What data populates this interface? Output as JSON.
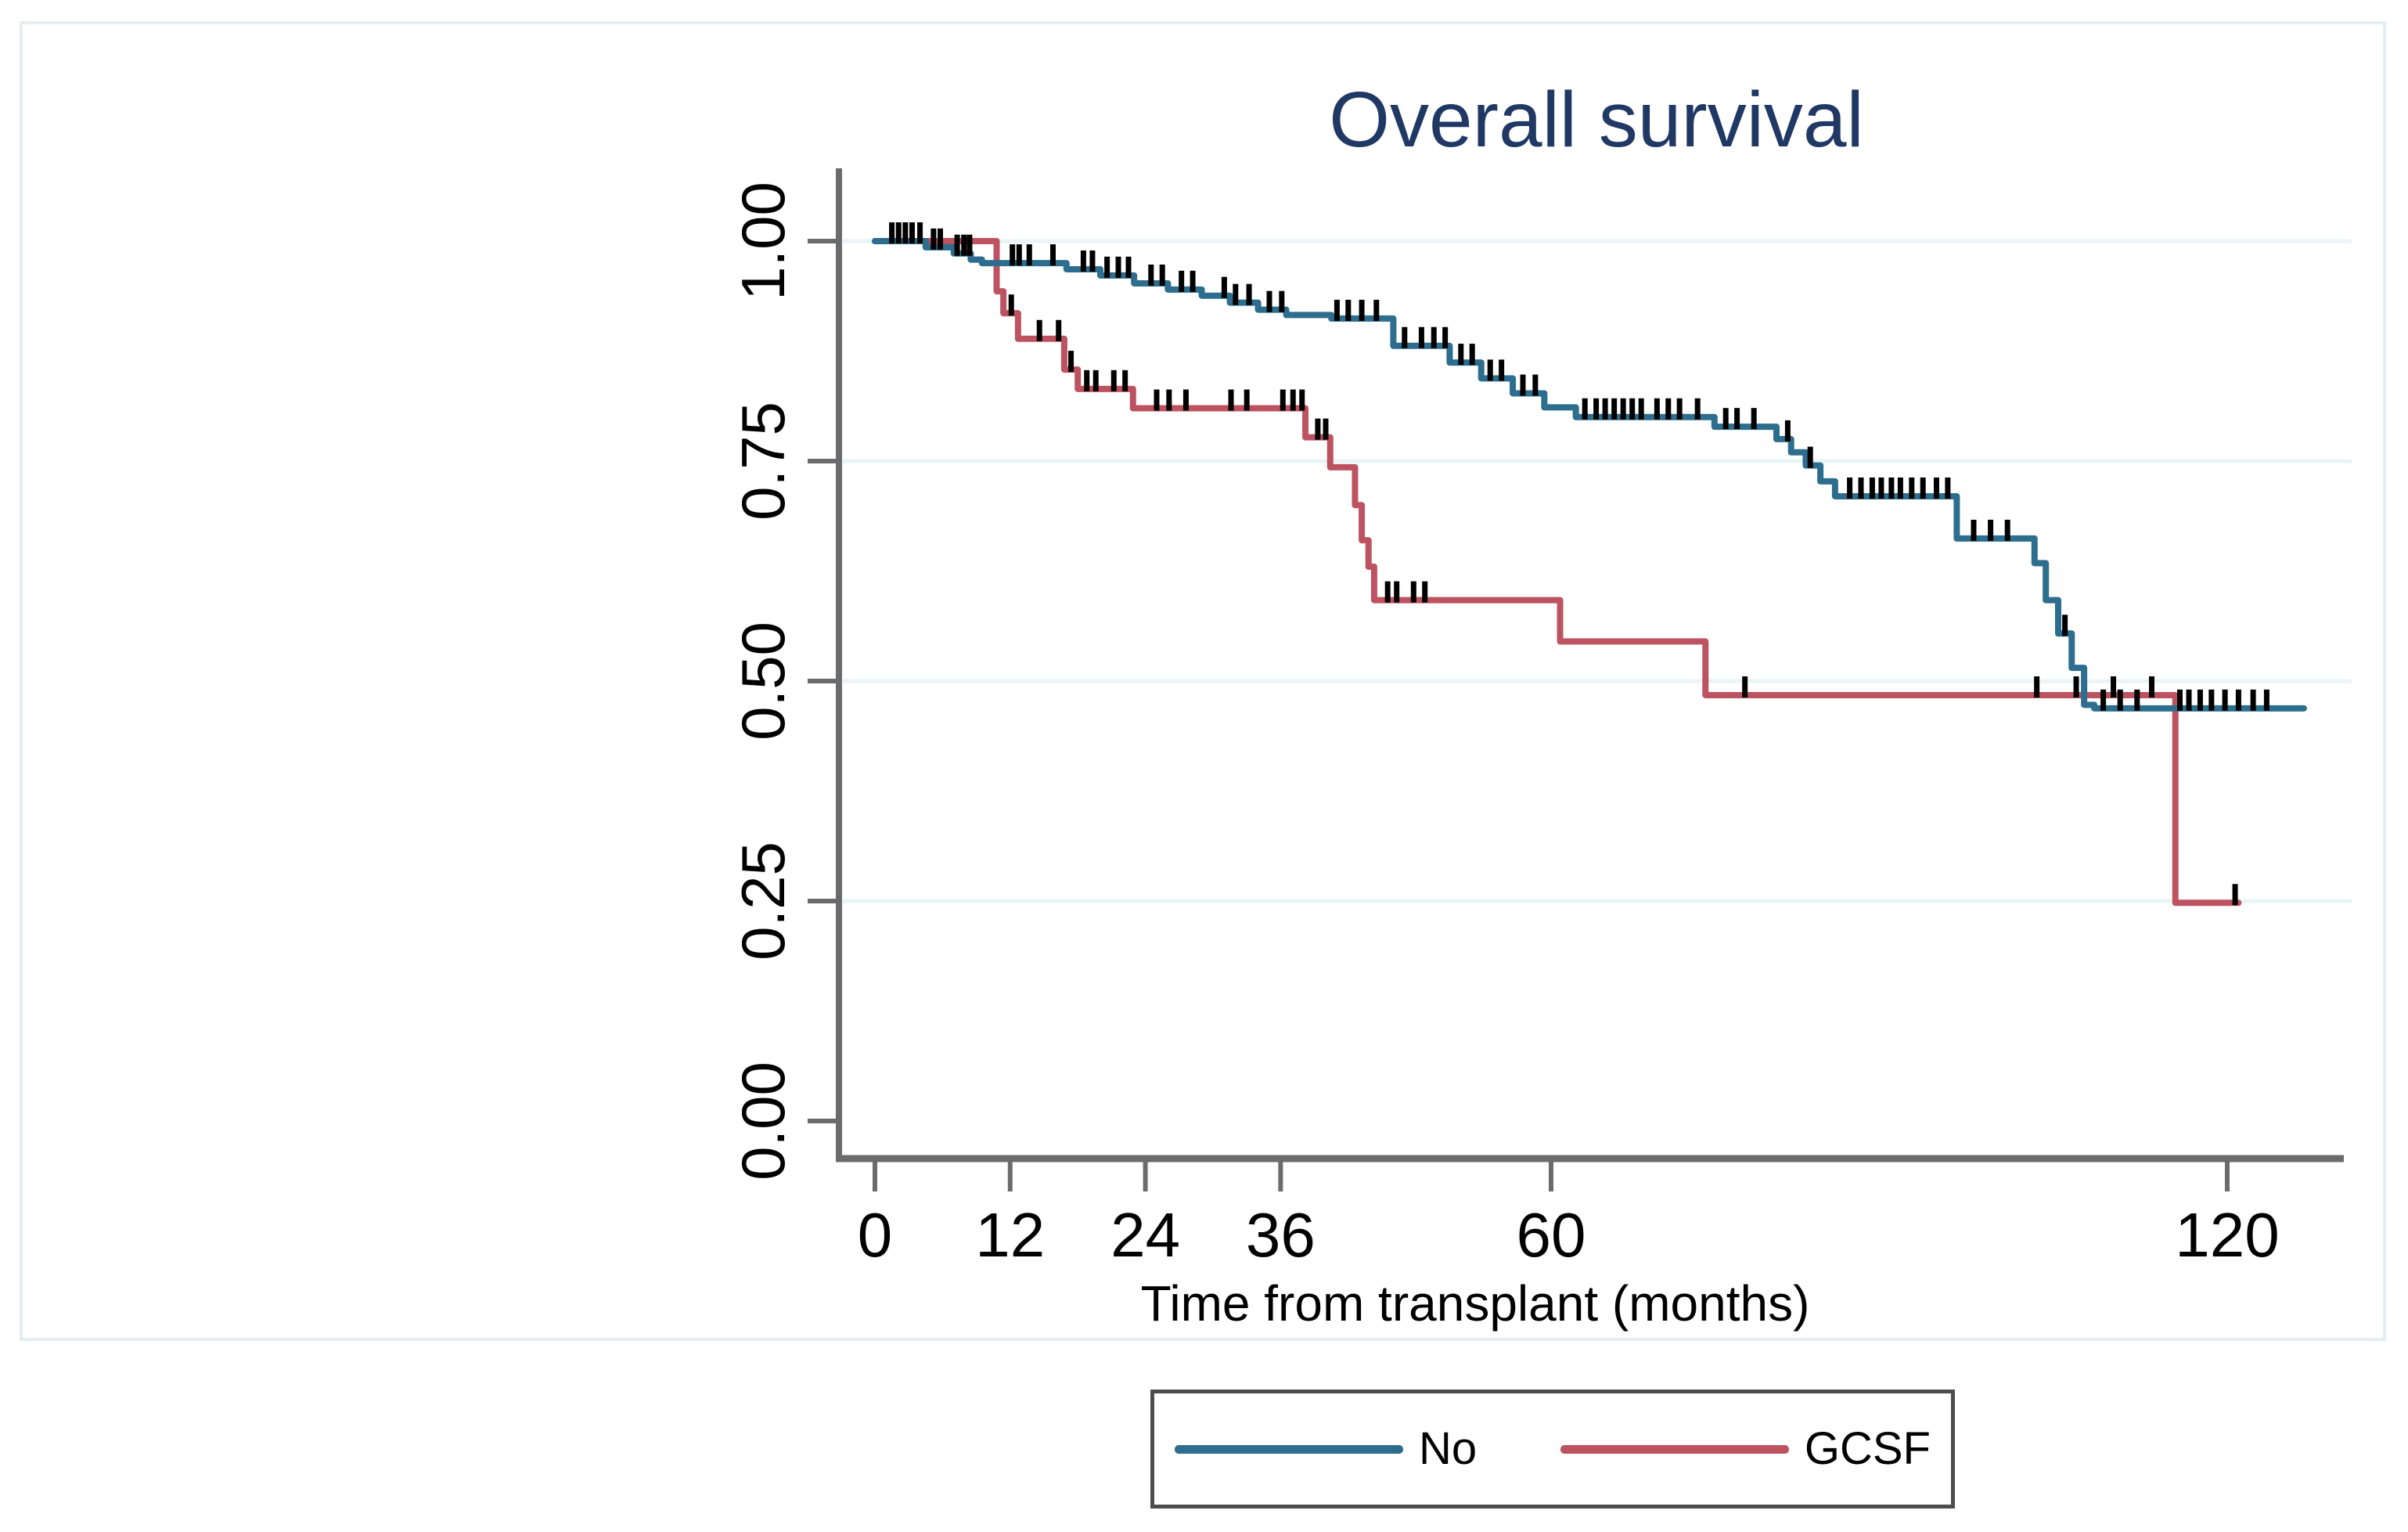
{
  "page": {
    "background": "#ffffff"
  },
  "chart": {
    "title_color": "#1f3864",
    "frame_color": "#e3eef1",
    "grid_color": "#e8f4f5",
    "axis_color": "#6b6b6b",
    "censor_tick_color": "#000000"
  },
  "legend": {
    "items": [
      {
        "label": "No",
        "color": "#2d6d8e"
      },
      {
        "label": "GCSF",
        "color": "#bd5360"
      }
    ]
  },
  "chart_data": {
    "type": "line",
    "subtype": "kaplan-meier-step-function",
    "title": "Overall survival",
    "xlabel": "Time from transplant (months)",
    "ylabel": "",
    "xlim": [
      0,
      130
    ],
    "ylim": [
      0.0,
      1.0
    ],
    "grid": "horizontal-only",
    "legend_position": "bottom-center",
    "x_ticks": [
      {
        "value": 0,
        "label": "0"
      },
      {
        "value": 12,
        "label": "12"
      },
      {
        "value": 24,
        "label": "24"
      },
      {
        "value": 36,
        "label": "36"
      },
      {
        "value": 60,
        "label": "60"
      },
      {
        "value": 120,
        "label": "120"
      }
    ],
    "y_ticks": [
      {
        "value": 0.0,
        "label": "0.00"
      },
      {
        "value": 0.25,
        "label": "0.25"
      },
      {
        "value": 0.5,
        "label": "0.50"
      },
      {
        "value": 0.75,
        "label": "0.75"
      },
      {
        "value": 1.0,
        "label": "1.00"
      }
    ],
    "series": [
      {
        "name": "No",
        "color": "#2d6d8e",
        "end_month": 126.8,
        "steps": [
          [
            0,
            1.0
          ],
          [
            4.5,
            0.993
          ],
          [
            7,
            0.986
          ],
          [
            8.5,
            0.979
          ],
          [
            9.5,
            0.975
          ],
          [
            17,
            0.968
          ],
          [
            20,
            0.961
          ],
          [
            23,
            0.952
          ],
          [
            26,
            0.945
          ],
          [
            29,
            0.938
          ],
          [
            31.5,
            0.93
          ],
          [
            34,
            0.922
          ],
          [
            36.5,
            0.916
          ],
          [
            40.5,
            0.912
          ],
          [
            46,
            0.881
          ],
          [
            51,
            0.862
          ],
          [
            53.8,
            0.844
          ],
          [
            56.6,
            0.827
          ],
          [
            59.4,
            0.811
          ],
          [
            62.2,
            0.8
          ],
          [
            74.5,
            0.789
          ],
          [
            80,
            0.775
          ],
          [
            81.3,
            0.76
          ],
          [
            82.6,
            0.745
          ],
          [
            83.9,
            0.727
          ],
          [
            85.2,
            0.71
          ],
          [
            96,
            0.662
          ],
          [
            102.9,
            0.634
          ],
          [
            103.9,
            0.592
          ],
          [
            105,
            0.554
          ],
          [
            106.2,
            0.515
          ],
          [
            107.3,
            0.473
          ],
          [
            108.2,
            0.469
          ]
        ],
        "censor_months": [
          1.5,
          2.1,
          2.7,
          3.3,
          4.0,
          5.2,
          5.8,
          7.3,
          7.9,
          8.4,
          12.2,
          12.8,
          13.7,
          15.8,
          18.5,
          19.3,
          20.6,
          21.6,
          22.5,
          24.5,
          25.5,
          27.2,
          28.2,
          31,
          32,
          33.2,
          35,
          36.1,
          41,
          42,
          43.2,
          44.5,
          47,
          48.5,
          49.6,
          50.6,
          52,
          53,
          54.6,
          55.6,
          57.5,
          58.6,
          63,
          64,
          64.8,
          65.6,
          66.4,
          67.2,
          68,
          69.4,
          70.4,
          71.4,
          73,
          75.5,
          76.5,
          78,
          81,
          83,
          86.5,
          87.5,
          88.5,
          89.3,
          90.2,
          91,
          92,
          93,
          94.2,
          95.2,
          97.5,
          99,
          100.5,
          105.6,
          109,
          110.5,
          112,
          115.8,
          116.6,
          117.6,
          118.6,
          119.8,
          121,
          122.3,
          123.5
        ]
      },
      {
        "name": "GCSF",
        "color": "#bd5360",
        "end_month": 121,
        "steps": [
          [
            0,
            1.0
          ],
          [
            10.8,
            0.943
          ],
          [
            11.4,
            0.918
          ],
          [
            12.7,
            0.889
          ],
          [
            16.8,
            0.854
          ],
          [
            18,
            0.832
          ],
          [
            22.9,
            0.81
          ],
          [
            38.2,
            0.777
          ],
          [
            40.4,
            0.743
          ],
          [
            42.6,
            0.7
          ],
          [
            43.2,
            0.66
          ],
          [
            43.8,
            0.63
          ],
          [
            44.3,
            0.592
          ],
          [
            60.8,
            0.545
          ],
          [
            73.7,
            0.484
          ],
          [
            115.4,
            0.248
          ]
        ],
        "censor_months": [
          12.1,
          14.6,
          16.3,
          17.4,
          18.8,
          19.6,
          21.2,
          22.2,
          25,
          26.1,
          27.6,
          31.6,
          33,
          36.2,
          37.1,
          37.9,
          39.3,
          40.0,
          45.5,
          46.3,
          47.8,
          48.8,
          77.2,
          103.1,
          106.6,
          109.9,
          113.3,
          120.7
        ]
      }
    ]
  }
}
